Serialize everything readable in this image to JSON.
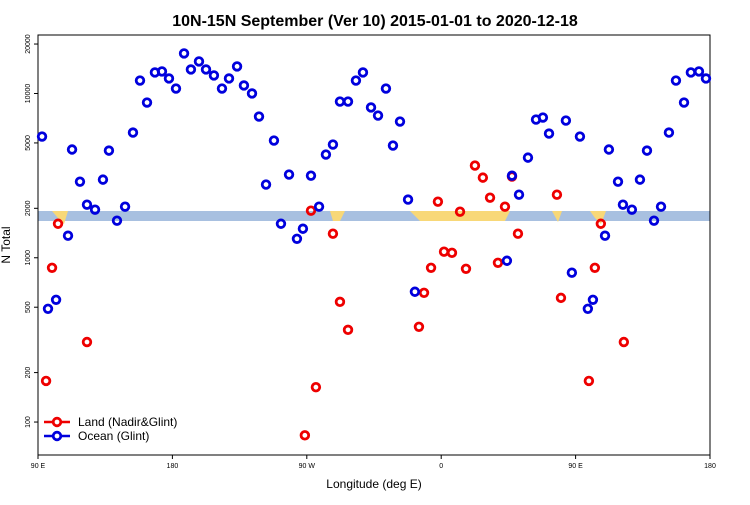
{
  "chart_data": {
    "type": "scatter",
    "title": "10N-15N September (Ver 10)   2015-01-01 to 2020-12-18",
    "x_label": "Longitude (deg E)",
    "y_label": "N Total",
    "xlim": [
      90,
      540
    ],
    "xticks": [
      {
        "value": 90,
        "label": "90 E"
      },
      180,
      {
        "value": 270,
        "label": "90 W"
      },
      {
        "value": 360,
        "label": "0"
      },
      {
        "value": 450,
        "label": "90 E"
      },
      {
        "value": 540,
        "label": "180"
      }
    ],
    "ylim": [
      63,
      22700
    ],
    "log_y": true,
    "yticks": [
      100,
      200,
      500,
      1000,
      2000,
      5000,
      10000,
      20000
    ],
    "legend": "lower left",
    "series": [
      {
        "name": "Land (Nadir&Glint)",
        "color": "#ee0000",
        "x": [
          95.4,
          99.4,
          103.4,
          122.8,
          268.7,
          272.8,
          276.1,
          287.5,
          292.2,
          297.6,
          345.1,
          348.5,
          353.2,
          357.8,
          361.9,
          367.2,
          372.6,
          376.6,
          382.6,
          387.9,
          392.7,
          398.0,
          402.7,
          407.4,
          411.4,
          437.5,
          440.2,
          458.9,
          462.9,
          466.9,
          482.3
        ],
        "values": [
          178,
          869,
          1611,
          307,
          83,
          1935,
          163,
          1401,
          539,
          364,
          380,
          612,
          869,
          2195,
          1089,
          1072,
          1907,
          857,
          3640,
          3075,
          2322,
          932,
          2047,
          3120,
          1401,
          2420,
          570,
          178,
          869,
          1611,
          307
        ]
      },
      {
        "name": "Ocean (Glint)",
        "color": "#0000dd",
        "x": [
          92.7,
          96.7,
          102.1,
          110.1,
          112.8,
          118.1,
          122.8,
          128.2,
          133.5,
          137.5,
          142.9,
          148.3,
          153.6,
          158.3,
          163.0,
          168.3,
          173.0,
          177.7,
          182.4,
          187.8,
          192.4,
          197.8,
          202.5,
          207.8,
          213.2,
          217.9,
          223.3,
          227.9,
          233.3,
          238.0,
          242.7,
          248.0,
          252.7,
          258.1,
          263.4,
          267.4,
          272.8,
          278.2,
          282.8,
          287.5,
          292.2,
          297.6,
          302.9,
          307.6,
          313.0,
          317.7,
          323.0,
          327.7,
          332.4,
          337.8,
          342.4,
          404.0,
          407.4,
          412.1,
          418.1,
          423.5,
          428.1,
          432.2,
          443.5,
          447.5,
          452.9,
          458.2,
          461.6,
          469.7,
          472.3,
          478.4,
          481.7,
          487.7,
          493.1,
          497.8,
          502.5,
          507.2,
          512.5,
          517.2,
          522.6,
          527.2,
          532.6,
          537.3
        ],
        "values": [
          5470,
          489,
          555,
          1362,
          4560,
          2905,
          2105,
          1963,
          2990,
          4490,
          1682,
          2047,
          5780,
          11990,
          8810,
          13430,
          13620,
          12340,
          10720,
          17540,
          14000,
          15670,
          14000,
          12880,
          10720,
          12340,
          14620,
          11190,
          10000,
          7240,
          2790,
          5170,
          1611,
          3210,
          1305,
          1502,
          3160,
          2047,
          4250,
          4890,
          8930,
          8930,
          11990,
          13430,
          8220,
          7340,
          10720,
          4820,
          6750,
          2260,
          621,
          959,
          3160,
          2420,
          4070,
          6940,
          7140,
          5700,
          6840,
          811,
          5470,
          489,
          555,
          1362,
          4560,
          2905,
          2105,
          1963,
          2990,
          4490,
          1682,
          2047,
          5780,
          11990,
          8810,
          13430,
          13620,
          12340
        ]
      }
    ]
  }
}
